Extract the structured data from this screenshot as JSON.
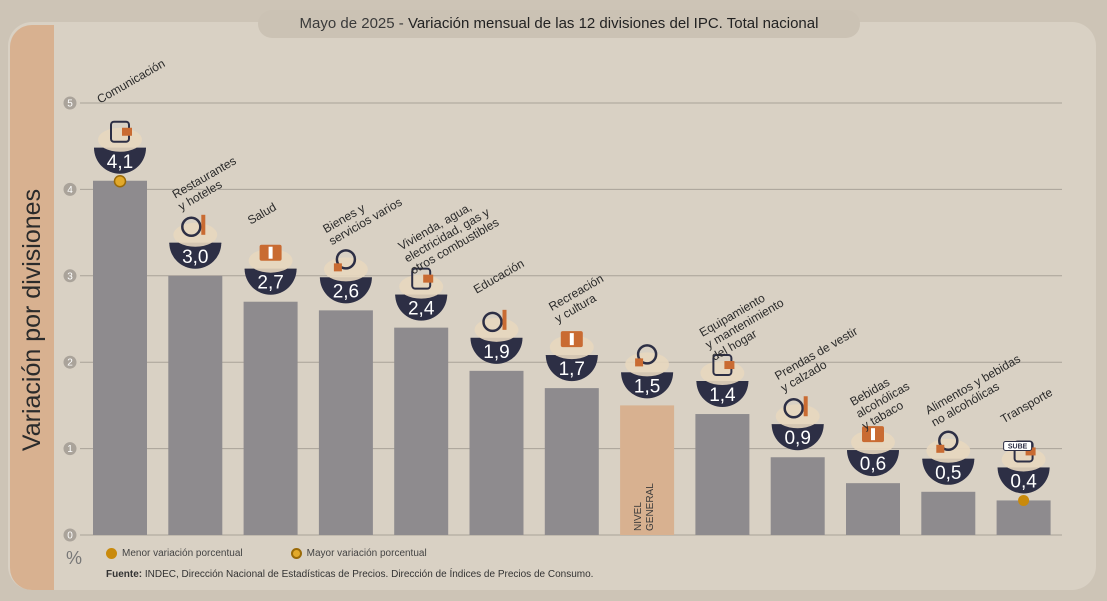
{
  "title": {
    "prefix": "Mayo de 2025 - ",
    "main": "Variación mensual de las 12 divisiones del IPC. Total nacional"
  },
  "side_label": "Variación por divisiones",
  "unit_label": "%",
  "legend": {
    "min_label": "Menor variación porcentual",
    "max_label": "Mayor variación porcentual"
  },
  "source": {
    "label": "Fuente:",
    "text": " INDEC, Dirección Nacional de Estadísticas de Precios. Dirección de Índices de Precios de Consumo."
  },
  "colors": {
    "bar": "#8e8b8e",
    "bar_general": "#d8b190",
    "badge": "#2d2f45",
    "icon_accent": "#c96b32",
    "grid": "#a9a298",
    "min_dot": "#c98a0c",
    "max_dot": "#e2a92a"
  },
  "chart_data": {
    "type": "bar",
    "ylim": [
      0,
      5
    ],
    "yticks": [
      "0",
      "1",
      "2",
      "3",
      "4",
      "5"
    ],
    "grid": true,
    "categories": [
      "Comunicación",
      "Restaurantes y hoteles",
      "Salud",
      "Bienes y servicios varios",
      "Vivienda, agua, electricidad, gas y otros combustibles",
      "Educación",
      "Recreación y cultura",
      "NIVEL GENERAL",
      "Equipamiento y mantenimiento del hogar",
      "Prendas de vestir y calzado",
      "Bebidas alcohólicas y tabaco",
      "Alimentos y bebidas no alcohólicas",
      "Transporte"
    ],
    "category_lines": [
      [
        "Comunicación"
      ],
      [
        "Restaurantes",
        "y hoteles"
      ],
      [
        "Salud"
      ],
      [
        "Bienes y",
        "servicios varios"
      ],
      [
        "Vivienda, agua,",
        "electricidad, gas y",
        "otros combustibles"
      ],
      [
        "Educación"
      ],
      [
        "Recreación",
        "y cultura"
      ],
      [
        "NIVEL",
        "GENERAL"
      ],
      [
        "Equipamiento",
        "y mantenimiento",
        "del hogar"
      ],
      [
        "Prendas de vestir",
        "y calzado"
      ],
      [
        "Bebidas",
        "alcohólicas",
        "y tabaco"
      ],
      [
        "Alimentos y bebidas",
        "no alcohólicas"
      ],
      [
        "Transporte"
      ]
    ],
    "values": [
      4.1,
      3.0,
      2.7,
      2.6,
      2.4,
      1.9,
      1.7,
      1.5,
      1.4,
      0.9,
      0.6,
      0.5,
      0.4
    ],
    "value_labels": [
      "4,1",
      "3,0",
      "2,7",
      "2,6",
      "2,4",
      "1,9",
      "1,7",
      "1,5",
      "1,4",
      "0,9",
      "0,6",
      "0,5",
      "0,4"
    ],
    "general_index": 7,
    "highest_index": 0,
    "lowest_index": 12,
    "icons": [
      "phone-icon",
      "restaurant-icon",
      "health-kit-icon",
      "comb-scissors-icon",
      "bulb-tools-icon",
      "books-icon",
      "umbrella-sun-icon",
      "basket-icon",
      "appliance-icon",
      "clothes-icon",
      "drinks-icon",
      "food-icon",
      "sube-card-icon"
    ],
    "special_labels": {
      "sube": "SUBE"
    }
  }
}
